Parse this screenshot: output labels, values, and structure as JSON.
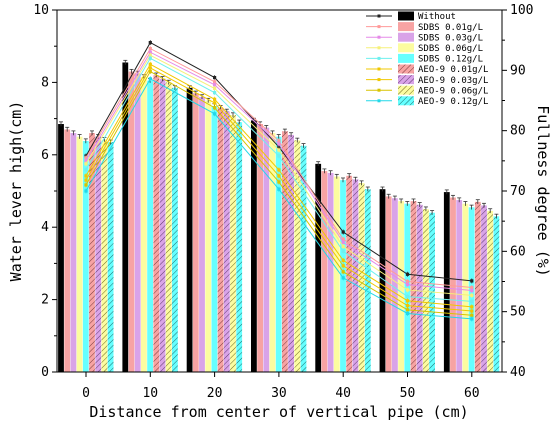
{
  "chart_data": {
    "type": "bar",
    "xlabel": "Distance from center of vertical pipe (cm)",
    "ylabel": "Water lever high(cm)",
    "y2label": "Fullness degree (%)",
    "categories": [
      "0",
      "10",
      "20",
      "30",
      "40",
      "50",
      "60"
    ],
    "ylim": [
      0,
      10
    ],
    "y2lim": [
      40,
      100
    ],
    "yticks": [
      "0",
      "2",
      "4",
      "6",
      "8",
      "10"
    ],
    "y2ticks": [
      "40",
      "50",
      "60",
      "70",
      "80",
      "90",
      "100"
    ],
    "bar_series": [
      {
        "name": "Without",
        "color": "#000000",
        "pattern": "solid",
        "values": [
          6.85,
          8.55,
          7.85,
          6.95,
          5.75,
          5.05,
          4.97
        ]
      },
      {
        "name": "SDBS  0.01g/L",
        "color": "#f7a3a3",
        "pattern": "solid",
        "values": [
          6.7,
          8.3,
          7.7,
          6.85,
          5.55,
          4.85,
          4.82
        ]
      },
      {
        "name": "SDBS  0.03g/L",
        "color": "#d9a3e8",
        "pattern": "solid",
        "values": [
          6.6,
          8.25,
          7.6,
          6.75,
          5.5,
          4.8,
          4.75
        ]
      },
      {
        "name": "SDBS  0.06g/L",
        "color": "#fcfca0",
        "pattern": "solid",
        "values": [
          6.5,
          8.15,
          7.5,
          6.6,
          5.4,
          4.72,
          4.65
        ]
      },
      {
        "name": "SDBS  0.12g/L",
        "color": "#66ffff",
        "pattern": "solid",
        "values": [
          6.38,
          8.05,
          7.35,
          6.5,
          5.3,
          4.65,
          4.55
        ]
      },
      {
        "name": "AEO-9  0.01g/L",
        "color": "#f7a3a3",
        "pattern": "hatch",
        "values": [
          6.6,
          8.2,
          7.3,
          6.65,
          5.42,
          4.72,
          4.7
        ]
      },
      {
        "name": "AEO-9  0.03g/L",
        "color": "#d9a3e8",
        "pattern": "hatch",
        "values": [
          6.5,
          8.1,
          7.2,
          6.55,
          5.32,
          4.62,
          4.6
        ]
      },
      {
        "name": "AEO-9  0.06g/L",
        "color": "#fcfca0",
        "pattern": "hatch",
        "values": [
          6.42,
          8.0,
          7.1,
          6.4,
          5.22,
          4.5,
          4.45
        ]
      },
      {
        "name": "AEO-9  0.12g/L",
        "color": "#66ffff",
        "pattern": "hatch",
        "values": [
          6.35,
          7.85,
          6.9,
          6.25,
          5.05,
          4.4,
          4.3
        ]
      }
    ],
    "line_series": [
      {
        "name": "Without",
        "color": "#222222",
        "values": [
          75.8,
          94.6,
          88.8,
          77.3,
          63.2,
          56.2,
          55.1
        ]
      },
      {
        "name": "SDBS  0.01g/L",
        "color": "#ff9a9a",
        "values": [
          75.5,
          93.6,
          88.1,
          78.3,
          62.0,
          55.0,
          54.0
        ]
      },
      {
        "name": "SDBS  0.03g/L",
        "color": "#e58ae8",
        "values": [
          75.0,
          93.0,
          87.6,
          77.8,
          61.5,
          54.5,
          53.5
        ]
      },
      {
        "name": "SDBS  0.06g/L",
        "color": "#f5f07a",
        "values": [
          74.5,
          92.5,
          87.0,
          76.8,
          60.8,
          53.6,
          52.7
        ]
      },
      {
        "name": "SDBS  0.12g/L",
        "color": "#6ef0ee",
        "values": [
          73.5,
          92.0,
          86.3,
          75.8,
          60.0,
          52.5,
          51.7
        ]
      },
      {
        "name": "AEO-9  0.01g/L",
        "color": "#f0c800",
        "values": [
          72.5,
          91.0,
          85.2,
          73.5,
          58.5,
          51.8,
          50.8
        ]
      },
      {
        "name": "AEO-9  0.03g/L",
        "color": "#f0c800",
        "values": [
          71.8,
          90.4,
          84.6,
          72.5,
          57.6,
          51.0,
          50.1
        ]
      },
      {
        "name": "AEO-9  0.06g/L",
        "color": "#d8c400",
        "values": [
          71.0,
          89.8,
          83.8,
          71.5,
          56.6,
          50.3,
          49.4
        ]
      },
      {
        "name": "AEO-9  0.12g/L",
        "color": "#22d8e8",
        "values": [
          70.0,
          88.6,
          82.8,
          70.3,
          55.6,
          49.7,
          48.8
        ]
      }
    ],
    "legend": {
      "placement": "top-right",
      "entries": [
        "Without",
        "SDBS  0.01g/L",
        "SDBS  0.03g/L",
        "SDBS  0.06g/L",
        "SDBS  0.12g/L",
        "AEO-9  0.01g/L",
        "AEO-9  0.03g/L",
        "AEO-9  0.06g/L",
        "AEO-9  0.12g/L"
      ]
    },
    "grid": false
  }
}
